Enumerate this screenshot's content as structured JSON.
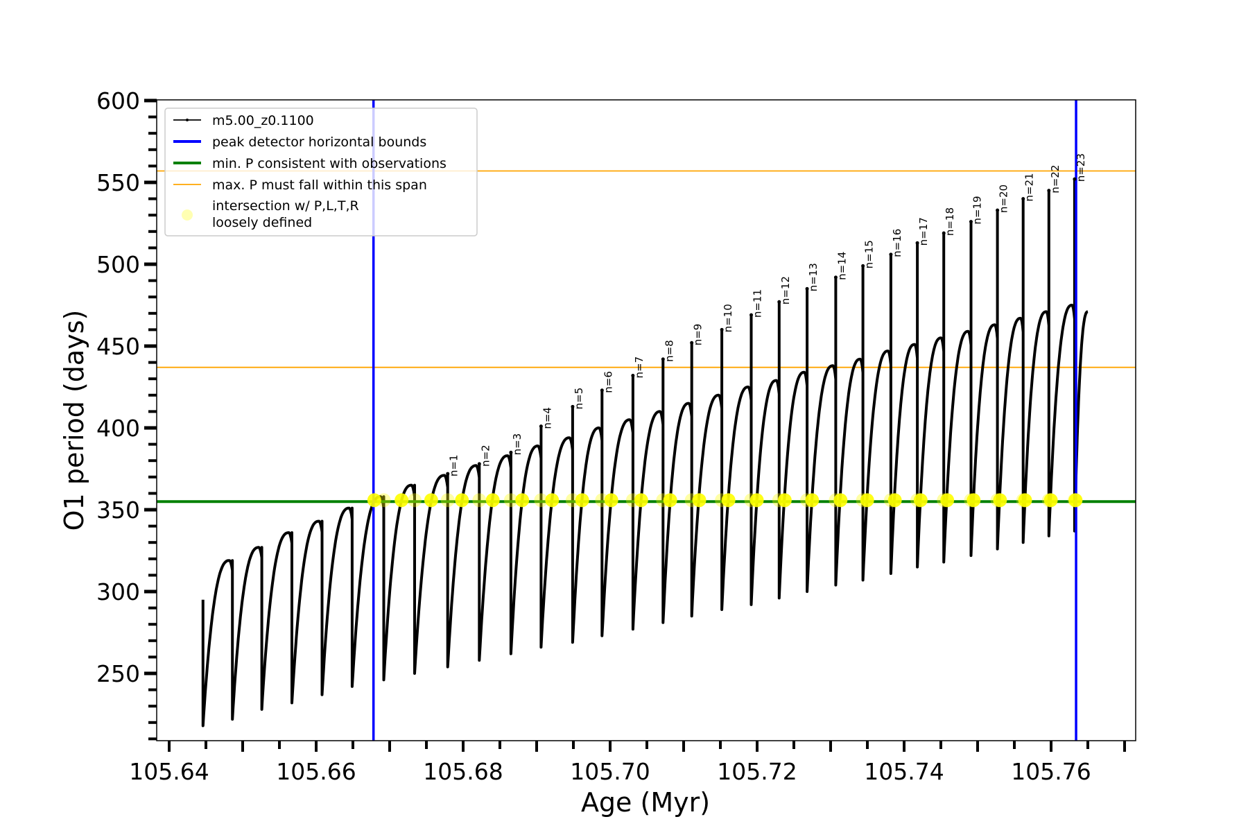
{
  "chart_data": {
    "type": "line",
    "xlabel": "Age (Myr)",
    "ylabel": "O1 period (days)",
    "xlim": [
      105.6383,
      105.7715
    ],
    "ylim": [
      208.9,
      600.4
    ],
    "xticks": [
      "105.64",
      "105.66",
      "105.68",
      "105.70",
      "105.72",
      "105.74",
      "105.76"
    ],
    "xtick_values": [
      105.64,
      105.66,
      105.68,
      105.7,
      105.72,
      105.74,
      105.76
    ],
    "yticks": [
      "250",
      "300",
      "350",
      "400",
      "450",
      "500",
      "550",
      "600"
    ],
    "ytick_values": [
      250,
      300,
      350,
      400,
      450,
      500,
      550,
      600
    ],
    "grid": false,
    "legend_placement": "upper-left",
    "legend": [
      {
        "label": "m5.00_z0.1100",
        "color": "#000000",
        "kind": "line-marker"
      },
      {
        "label": "peak detector horizontal bounds",
        "color": "#0000ff",
        "kind": "thick-line"
      },
      {
        "label": "min. P consistent with observations",
        "color": "#008000",
        "kind": "thick-line"
      },
      {
        "label": "max. P must fall within this span",
        "color": "#ffa500",
        "kind": "thin-line"
      },
      {
        "label": "intersection w/ P,L,T,R\nloosely defined",
        "label_lines": [
          "intersection w/ P,L,T,R",
          "loosely defined"
        ],
        "color": "#ffff00",
        "kind": "dot"
      }
    ],
    "series": {
      "name": "m5.00_z0.1100",
      "start_age": 105.6446,
      "start_value": 295,
      "end_age": 105.765,
      "end_value": 471,
      "drop_ages": [
        105.6486,
        105.6526,
        105.6567,
        105.6608,
        105.6649,
        105.6692,
        105.6734,
        105.6779,
        105.6822,
        105.6865,
        105.6906,
        105.6949,
        105.6989,
        105.7031,
        105.7072,
        105.7111,
        105.7152,
        105.7192,
        105.723,
        105.7268,
        105.7307,
        105.7344,
        105.7382,
        105.7418,
        105.7454,
        105.7491,
        105.7527,
        105.7562,
        105.7597,
        105.7632
      ],
      "cycle_minima": [
        218,
        222,
        228,
        232,
        237,
        242,
        246,
        250,
        254,
        258,
        262,
        266,
        269,
        273,
        277,
        281,
        285,
        289,
        292,
        296,
        300,
        304,
        307,
        311,
        315,
        318,
        322,
        326,
        330,
        334,
        337
      ],
      "cycle_maxima": [
        319,
        327,
        336,
        343,
        351,
        358,
        365,
        371,
        377,
        383,
        389,
        394,
        400,
        405,
        410,
        415,
        420,
        425,
        429,
        434,
        438,
        442,
        447,
        451,
        455,
        459,
        463,
        467,
        471,
        475
      ]
    },
    "spikes": [
      {
        "label": "n=1",
        "value": 372
      },
      {
        "label": "n=2",
        "value": 378
      },
      {
        "label": "n=3",
        "value": 385
      },
      {
        "label": "n=4",
        "value": 401
      },
      {
        "label": "n=5",
        "value": 413
      },
      {
        "label": "n=6",
        "value": 423
      },
      {
        "label": "n=7",
        "value": 432
      },
      {
        "label": "n=8",
        "value": 442
      },
      {
        "label": "n=9",
        "value": 452
      },
      {
        "label": "n=10",
        "value": 460
      },
      {
        "label": "n=11",
        "value": 469
      },
      {
        "label": "n=12",
        "value": 477
      },
      {
        "label": "n=13",
        "value": 485
      },
      {
        "label": "n=14",
        "value": 492
      },
      {
        "label": "n=15",
        "value": 499
      },
      {
        "label": "n=16",
        "value": 506
      },
      {
        "label": "n=17",
        "value": 513
      },
      {
        "label": "n=18",
        "value": 519
      },
      {
        "label": "n=19",
        "value": 526
      },
      {
        "label": "n=20",
        "value": 533
      },
      {
        "label": "n=21",
        "value": 540
      },
      {
        "label": "n=22",
        "value": 545
      },
      {
        "label": "n=23",
        "value": 552
      }
    ],
    "first_spike_drop_index": 7,
    "vertical_bounds": [
      105.6678,
      105.7634
    ],
    "min_period_line": 355,
    "max_period_span": [
      437,
      557
    ],
    "colors": {
      "curve": "#000000",
      "bounds": "#0000ff",
      "min_line": "#008000",
      "max_span": "#ffa500",
      "intersection": "#ffff00"
    }
  }
}
